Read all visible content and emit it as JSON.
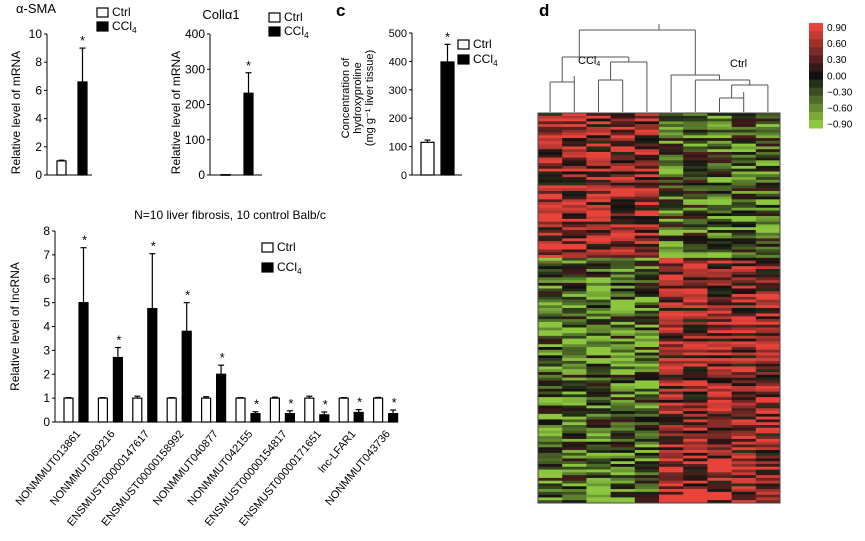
{
  "panels": {
    "c_label": "c",
    "d_label": "d"
  },
  "colors": {
    "ctrl_fill": "#ffffff",
    "ccl4_fill": "#000000",
    "heat_high": "#e8433a",
    "heat_zero": "#111111",
    "heat_low": "#8cc63f"
  },
  "legend": {
    "ctrl": "Ctrl",
    "ccl4_base": "CCl",
    "ccl4_sub": "4"
  },
  "chart_data": [
    {
      "id": "asma",
      "type": "bar",
      "title": "α-SMA",
      "ylabel": "Relative level of mRNA",
      "ylim": [
        0,
        10
      ],
      "yticks": [
        "0",
        "2",
        "4",
        "6",
        "8",
        "10"
      ],
      "categories": [
        ""
      ],
      "series": [
        {
          "name": "Ctrl",
          "values": [
            1.0
          ],
          "err": [
            0.05
          ]
        },
        {
          "name": "CCl4",
          "values": [
            6.6
          ],
          "err": [
            2.4
          ]
        }
      ],
      "significance": [
        "*"
      ]
    },
    {
      "id": "col1a1",
      "type": "bar",
      "title": "Collα1",
      "ylabel": "Relative level of mRNA",
      "ylim": [
        0,
        400
      ],
      "yticks": [
        "0",
        "100",
        "200",
        "300",
        "400"
      ],
      "categories": [
        ""
      ],
      "series": [
        {
          "name": "Ctrl",
          "values": [
            1
          ],
          "err": [
            0
          ]
        },
        {
          "name": "CCl4",
          "values": [
            232
          ],
          "err": [
            58
          ]
        }
      ],
      "significance": [
        "*"
      ]
    },
    {
      "id": "hydroxyproline",
      "type": "bar",
      "title": "",
      "ylabel_lines": [
        "Concentration of",
        "hydroxyproline",
        "(mg g⁻¹ liver tissue)"
      ],
      "ylim": [
        0,
        500
      ],
      "yticks": [
        "0",
        "100",
        "200",
        "300",
        "400",
        "500"
      ],
      "categories": [
        ""
      ],
      "series": [
        {
          "name": "Ctrl",
          "values": [
            115
          ],
          "err": [
            8
          ]
        },
        {
          "name": "CCl4",
          "values": [
            398
          ],
          "err": [
            62
          ]
        }
      ],
      "significance": [
        "*"
      ]
    },
    {
      "id": "lncrna",
      "type": "bar",
      "title": "N=10 liver fibrosis, 10 control Balb/c",
      "ylabel": "Relative level of lncRNA",
      "ylim": [
        0,
        8
      ],
      "yticks": [
        "0",
        "1",
        "2",
        "3",
        "4",
        "5",
        "6",
        "7",
        "8"
      ],
      "categories": [
        "NONMMUT013861",
        "NONMMUT069216",
        "ENSMUST00000147617",
        "ENSMUST00000158992",
        "NONMMUT040877",
        "NONMMUT042155",
        "ENSMUST00000154817",
        "ENSMUST00000171651",
        "lnc-LFAR1",
        "NONMMUT043736"
      ],
      "series": [
        {
          "name": "Ctrl",
          "values": [
            1,
            1,
            1,
            1,
            1,
            1,
            1,
            1,
            1,
            1
          ],
          "err": [
            0.02,
            0.02,
            0.08,
            0.02,
            0.06,
            0.02,
            0.04,
            0.08,
            0.02,
            0.03
          ]
        },
        {
          "name": "CCl4",
          "values": [
            5.0,
            2.7,
            4.75,
            3.8,
            2.0,
            0.35,
            0.35,
            0.3,
            0.4,
            0.35
          ],
          "err": [
            2.3,
            0.42,
            2.3,
            1.2,
            0.38,
            0.08,
            0.12,
            0.12,
            0.12,
            0.15
          ]
        }
      ],
      "significance": [
        "*",
        "*",
        "*",
        "*",
        "*",
        "*",
        "*",
        "*",
        "*",
        "*"
      ]
    },
    {
      "id": "heatmap",
      "type": "heatmap",
      "group_labels": {
        "ccl4_base": "CCl",
        "ccl4_sub": "4",
        "ctrl": "Ctrl"
      },
      "columns": 10,
      "colorbar_ticks": [
        "0.90",
        "0.60",
        "0.30",
        "0.00",
        "−0.30",
        "−0.60",
        "−0.90"
      ],
      "value_range": [
        -0.9,
        0.9
      ],
      "row_count": 140
    }
  ]
}
